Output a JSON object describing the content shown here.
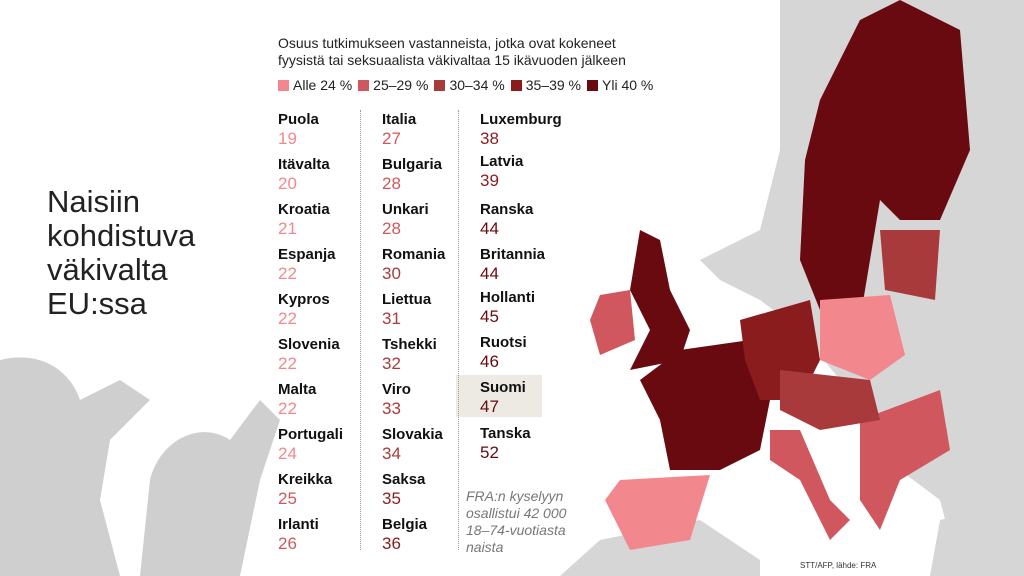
{
  "header": {
    "title": [
      "Naisiin",
      "kohdistuva",
      "väkivalta",
      "EU:ssa"
    ],
    "subtitle": [
      "Osuus tutkimukseen vastanneista, jotka ovat kokeneet",
      "fyysistä tai seksuaalista väkivaltaa 15 ikävuoden jälkeen"
    ]
  },
  "legend": [
    {
      "label": "Alle 24 %",
      "color": "#f2878d"
    },
    {
      "label": "25–29 %",
      "color": "#cf575d"
    },
    {
      "label": "30–34 %",
      "color": "#a93a3c"
    },
    {
      "label": "35–39 %",
      "color": "#8a1c1e"
    },
    {
      "label": "Yli 40 %",
      "color": "#680a10"
    }
  ],
  "columns": [
    [
      {
        "name": "Puola",
        "value": 19,
        "color": "#f2878d"
      },
      {
        "name": "Itävalta",
        "value": 20,
        "color": "#f2878d"
      },
      {
        "name": "Kroatia",
        "value": 21,
        "color": "#f2878d"
      },
      {
        "name": "Espanja",
        "value": 22,
        "color": "#f2878d"
      },
      {
        "name": "Kypros",
        "value": 22,
        "color": "#f2878d"
      },
      {
        "name": "Slovenia",
        "value": 22,
        "color": "#f2878d"
      },
      {
        "name": "Malta",
        "value": 22,
        "color": "#f2878d"
      },
      {
        "name": "Portugali",
        "value": 24,
        "color": "#f2878d"
      },
      {
        "name": "Kreikka",
        "value": 25,
        "color": "#cf575d"
      },
      {
        "name": "Irlanti",
        "value": 26,
        "color": "#cf575d"
      }
    ],
    [
      {
        "name": "Italia",
        "value": 27,
        "color": "#cf575d"
      },
      {
        "name": "Bulgaria",
        "value": 28,
        "color": "#cf575d"
      },
      {
        "name": "Unkari",
        "value": 28,
        "color": "#cf575d"
      },
      {
        "name": "Romania",
        "value": 30,
        "color": "#a93a3c"
      },
      {
        "name": "Liettua",
        "value": 31,
        "color": "#a93a3c"
      },
      {
        "name": "Tshekki",
        "value": 32,
        "color": "#a93a3c"
      },
      {
        "name": "Viro",
        "value": 33,
        "color": "#a93a3c"
      },
      {
        "name": "Slovakia",
        "value": 34,
        "color": "#a93a3c"
      },
      {
        "name": "Saksa",
        "value": 35,
        "color": "#8a1c1e"
      },
      {
        "name": "Belgia",
        "value": 36,
        "color": "#8a1c1e"
      }
    ],
    [
      {
        "name": "Luxemburg",
        "value": 38,
        "color": "#8a1c1e"
      },
      {
        "name": "Latvia",
        "value": 39,
        "color": "#8a1c1e"
      },
      {
        "name": "Ranska",
        "value": 44,
        "color": "#680a10"
      },
      {
        "name": "Britannia",
        "value": 44,
        "color": "#680a10"
      },
      {
        "name": "Hollanti",
        "value": 45,
        "color": "#680a10"
      },
      {
        "name": "Ruotsi",
        "value": 46,
        "color": "#680a10"
      },
      {
        "name": "Suomi",
        "value": 47,
        "color": "#680a10"
      },
      {
        "name": "Tanska",
        "value": 52,
        "color": "#680a10"
      }
    ]
  ],
  "note": [
    "FRA:n kyselyyn",
    "osallistui 42 000",
    "18–74-vuotiasta",
    "naista"
  ],
  "credit": "STT/AFP, lähde: FRA"
}
